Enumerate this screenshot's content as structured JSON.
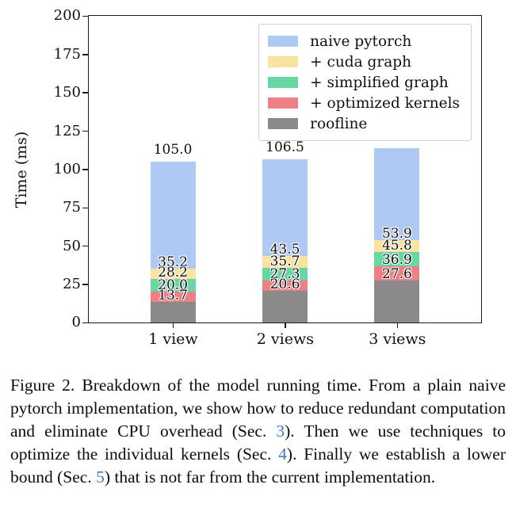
{
  "figure": {
    "caption": {
      "link_color": "#4479c0",
      "segments": [
        {
          "text": "Figure 2. Breakdown of the model running time. From a plain naive pytorch implementation, we show how to reduce redundant computation and eliminate CPU overhead (Sec. ",
          "link": false
        },
        {
          "text": "3",
          "link": true
        },
        {
          "text": "). Then we use techniques to optimize the individual kernels (Sec. ",
          "link": false
        },
        {
          "text": "4",
          "link": true
        },
        {
          "text": "). Finally we establish a lower bound (Sec. ",
          "link": false
        },
        {
          "text": "5",
          "link": true
        },
        {
          "text": ") that is not far from the current implementation.",
          "link": false
        }
      ]
    }
  },
  "chart_data": {
    "type": "bar",
    "variant": "overlaid (each series drawn from 0, later series on top)",
    "title": "",
    "xlabel": "",
    "ylabel": "Time (ms)",
    "ylim": [
      0,
      200
    ],
    "yticks": [
      0,
      25,
      50,
      75,
      100,
      125,
      150,
      175,
      200
    ],
    "grid": false,
    "legend_position": "upper right",
    "categories": [
      "1 view",
      "2 views",
      "3 views"
    ],
    "series": [
      {
        "name": "naive pytorch",
        "color": "#aecaf4",
        "values": [
          105.0,
          106.5,
          113.9
        ]
      },
      {
        "name": "+ cuda graph",
        "color": "#f8e3a1",
        "values": [
          35.2,
          43.5,
          53.9
        ]
      },
      {
        "name": "+ simplified graph",
        "color": "#68d6a2",
        "values": [
          28.2,
          35.7,
          45.8
        ]
      },
      {
        "name": "+ optimized kernels",
        "color": "#ee8085",
        "values": [
          20.0,
          27.3,
          36.9
        ]
      },
      {
        "name": "roofline",
        "color": "#8a8a8a",
        "values": [
          13.7,
          20.6,
          27.6
        ]
      }
    ],
    "bar_value_labels_decimals": 1,
    "axis_color": "#1a1a1a"
  }
}
